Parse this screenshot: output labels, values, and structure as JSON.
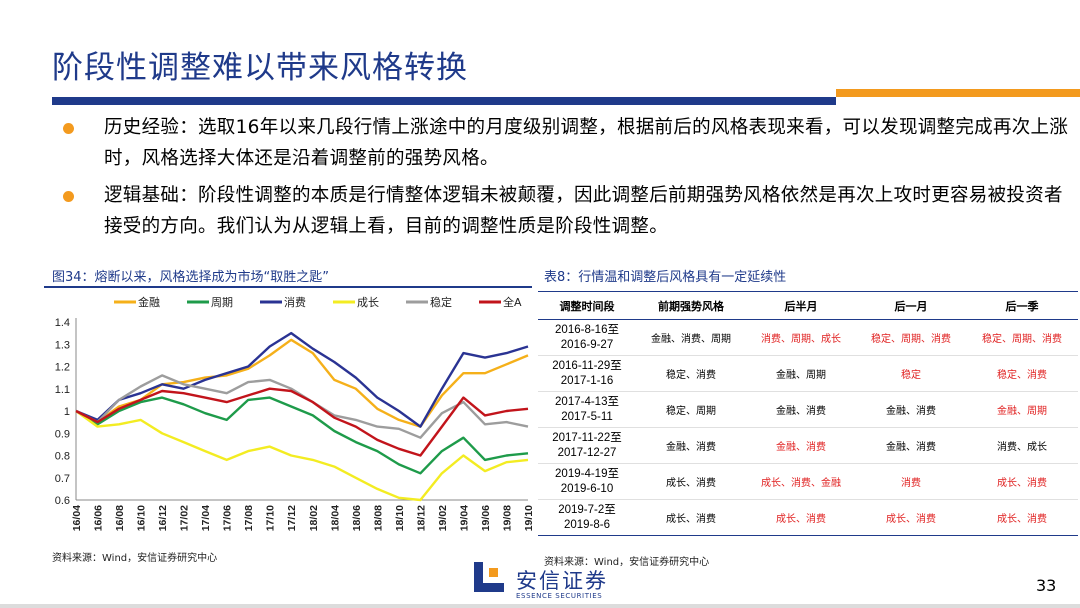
{
  "title": "阶段性调整难以带来风格转换",
  "bullets": [
    "历史经验：选取16年以来几段行情上涨途中的月度级别调整，根据前后的风格表现来看，可以发现调整完成再次上涨时，风格选择大体还是沿着调整前的强势风格。",
    "逻辑基础：阶段性调整的本质是行情整体逻辑未被颠覆，因此调整后前期强势风格依然是再次上攻时更容易被投资者接受的方向。我们认为从逻辑上看，目前的调整性质是阶段性调整。"
  ],
  "colors": {
    "accent_blue": "#1f3a8a",
    "accent_orange": "#f39a1e",
    "highlight_red": "#e02020"
  },
  "figure": {
    "title": "图34：熔断以来，风格选择成为市场“取胜之匙”",
    "source": "资料来源：Wind，安信证券研究中心"
  },
  "chart_data": {
    "type": "line",
    "categories": [
      "16/04",
      "16/06",
      "16/08",
      "16/10",
      "16/12",
      "17/02",
      "17/04",
      "17/06",
      "17/08",
      "17/10",
      "17/12",
      "18/02",
      "18/04",
      "18/06",
      "18/08",
      "18/10",
      "18/12",
      "19/02",
      "19/04",
      "19/06",
      "19/08",
      "19/10"
    ],
    "ylim": [
      0.6,
      1.4
    ],
    "yticks": [
      "0.6",
      "0.7",
      "0.8",
      "0.9",
      "1",
      "1.1",
      "1.2",
      "1.3",
      "1.4"
    ],
    "legend_position": "top",
    "series": [
      {
        "name": "金融",
        "color": "#f5b01a",
        "values": [
          1.0,
          0.95,
          1.02,
          1.05,
          1.12,
          1.13,
          1.15,
          1.16,
          1.19,
          1.25,
          1.32,
          1.26,
          1.14,
          1.1,
          1.01,
          0.96,
          0.93,
          1.07,
          1.17,
          1.17,
          1.21,
          1.25
        ]
      },
      {
        "name": "周期",
        "color": "#1e9b4a",
        "values": [
          1.0,
          0.94,
          1.0,
          1.04,
          1.06,
          1.03,
          0.99,
          0.96,
          1.05,
          1.06,
          1.02,
          0.98,
          0.91,
          0.86,
          0.82,
          0.76,
          0.72,
          0.82,
          0.88,
          0.78,
          0.8,
          0.81
        ]
      },
      {
        "name": "消费",
        "color": "#2a3393",
        "values": [
          1.0,
          0.96,
          1.05,
          1.08,
          1.12,
          1.1,
          1.14,
          1.17,
          1.2,
          1.29,
          1.35,
          1.28,
          1.22,
          1.15,
          1.06,
          1.0,
          0.93,
          1.1,
          1.26,
          1.24,
          1.26,
          1.29
        ]
      },
      {
        "name": "成长",
        "color": "#f3ec22",
        "values": [
          1.0,
          0.93,
          0.94,
          0.96,
          0.9,
          0.86,
          0.82,
          0.78,
          0.82,
          0.84,
          0.8,
          0.78,
          0.75,
          0.7,
          0.65,
          0.61,
          0.6,
          0.72,
          0.8,
          0.73,
          0.77,
          0.78
        ]
      },
      {
        "name": "稳定",
        "color": "#9d9d9d",
        "values": [
          1.0,
          0.95,
          1.05,
          1.11,
          1.16,
          1.12,
          1.1,
          1.08,
          1.13,
          1.14,
          1.1,
          1.04,
          0.98,
          0.96,
          0.93,
          0.92,
          0.88,
          0.99,
          1.04,
          0.94,
          0.95,
          0.93
        ]
      },
      {
        "name": "全A",
        "color": "#c2141b",
        "values": [
          1.0,
          0.95,
          1.01,
          1.05,
          1.09,
          1.08,
          1.06,
          1.04,
          1.07,
          1.1,
          1.09,
          1.04,
          0.97,
          0.93,
          0.87,
          0.83,
          0.8,
          0.93,
          1.06,
          0.98,
          1.0,
          1.01
        ]
      }
    ]
  },
  "table": {
    "title": "表8：行情温和调整后风格具有一定延续性",
    "headers": [
      "调整时间段",
      "前期强势风格",
      "后半月",
      "后一月",
      "后一季"
    ],
    "rows": [
      {
        "period_start": "2016-8-16至",
        "period_end": "2016-9-27",
        "prior": "金融、消费、周期",
        "half_month": "消费、周期、成长",
        "one_month": "稳定、周期、消费",
        "one_quarter": "稳定、周期、消费"
      },
      {
        "period_start": "2016-11-29至",
        "period_end": "2017-1-16",
        "prior": "稳定、消费",
        "half_month": "金融、周期",
        "one_month": "稳定",
        "one_quarter": "稳定、消费"
      },
      {
        "period_start": "2017-4-13至",
        "period_end": "2017-5-11",
        "prior": "稳定、周期",
        "half_month": "金融、消费",
        "one_month": "金融、消费",
        "one_quarter": "金融、周期"
      },
      {
        "period_start": "2017-11-22至",
        "period_end": "2017-12-27",
        "prior": "金融、消费",
        "half_month": "金融、消费",
        "one_month": "金融、消费",
        "one_quarter": "消费、成长"
      },
      {
        "period_start": "2019-4-19至",
        "period_end": "2019-6-10",
        "prior": "成长、消费",
        "half_month": "成长、消费、金融",
        "one_month": "消费",
        "one_quarter": "成长、消费"
      },
      {
        "period_start": "2019-7-2至",
        "period_end": "2019-8-6",
        "prior": "成长、消费",
        "half_month": "成长、消费",
        "one_month": "成长、消费",
        "one_quarter": "成长、消费"
      }
    ],
    "source": "资料来源：Wind，安信证券研究中心"
  },
  "logo": {
    "cn": "安信证券",
    "en": "ESSENCE SECURITIES",
    "icon": "essence-logo-mark"
  },
  "page_number": "33"
}
